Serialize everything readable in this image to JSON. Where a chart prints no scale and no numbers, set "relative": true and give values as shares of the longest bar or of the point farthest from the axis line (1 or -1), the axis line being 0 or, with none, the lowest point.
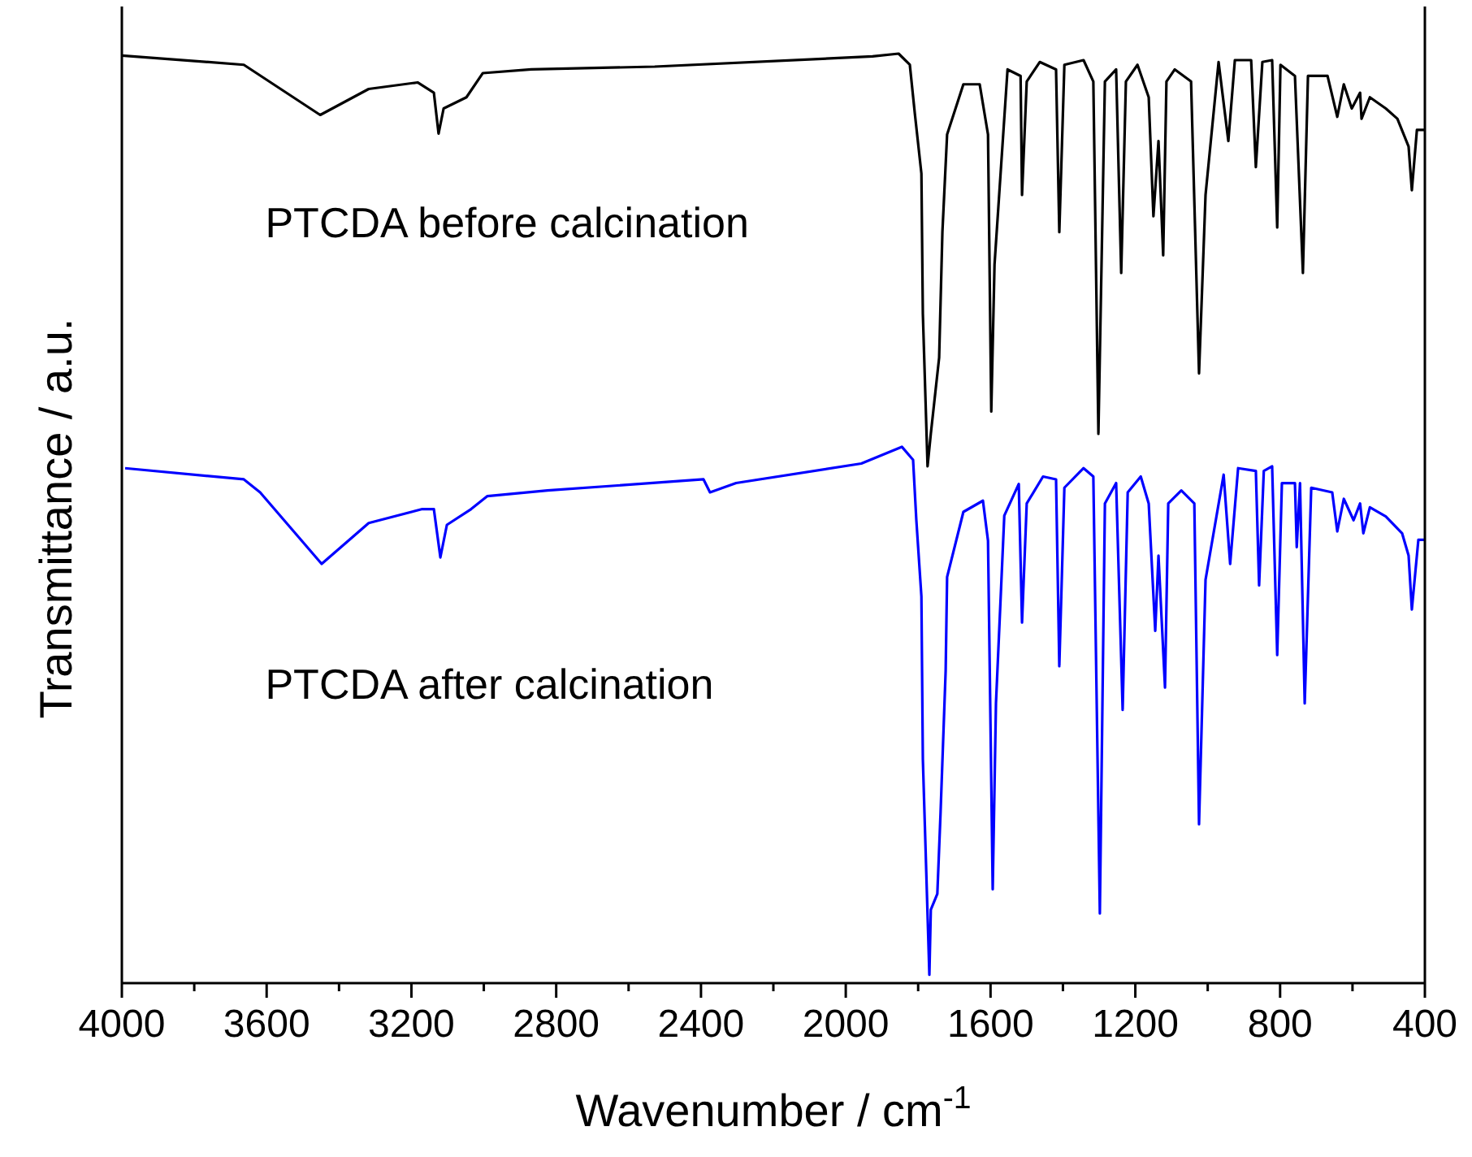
{
  "chart_data": {
    "type": "line",
    "relative": true,
    "xlabel": "Wavenumber / cm$^{-1}$",
    "ylabel": "Transmittance / a.u.",
    "xlim": [
      4000,
      400
    ],
    "xticks": [
      4000,
      {
        "value": 3800,
        "label": null
      },
      3600,
      {
        "value": 3400,
        "label": null
      },
      3200,
      {
        "value": 3000,
        "label": null
      },
      2800,
      {
        "value": 2600,
        "label": null
      },
      2400,
      {
        "value": 2200,
        "label": null
      },
      2000,
      {
        "value": 1800,
        "label": null
      },
      1600,
      {
        "value": 1400,
        "label": null
      },
      1200,
      {
        "value": 1000,
        "label": null
      },
      800,
      {
        "value": 600,
        "label": null
      },
      400
    ],
    "marker": "none",
    "line_style": "solid",
    "legend": false,
    "grid": false,
    "series": [
      {
        "name": "PTCDA before calcination",
        "color": "#000000",
        "x": [
          4000,
          3663,
          3452,
          3318,
          3183,
          3138,
          3125,
          3111,
          3048,
          3003,
          2869,
          2528,
          1926,
          1854,
          1823,
          1809,
          1791,
          1787,
          1774,
          1765,
          1742,
          1733,
          1720,
          1675,
          1630,
          1607,
          1598,
          1589,
          1553,
          1517,
          1513,
          1500,
          1464,
          1419,
          1410,
          1396,
          1343,
          1316,
          1302,
          1284,
          1253,
          1239,
          1226,
          1194,
          1163,
          1150,
          1136,
          1123,
          1114,
          1091,
          1046,
          1024,
          1006,
          970,
          943,
          925,
          880,
          867,
          849,
          822,
          808,
          799,
          759,
          737,
          723,
          669,
          642,
          624,
          602,
          579,
          575,
          552,
          508,
          476,
          445,
          436,
          422,
          400
        ],
        "values": [
          0.998,
          0.988,
          0.934,
          0.962,
          0.969,
          0.958,
          0.914,
          0.941,
          0.953,
          0.979,
          0.983,
          0.986,
          0.997,
          1.0,
          0.988,
          0.935,
          0.871,
          0.72,
          0.556,
          0.591,
          0.673,
          0.808,
          0.913,
          0.967,
          0.967,
          0.913,
          0.615,
          0.773,
          0.983,
          0.976,
          0.848,
          0.97,
          0.991,
          0.983,
          0.808,
          0.988,
          0.993,
          0.97,
          0.591,
          0.97,
          0.983,
          0.764,
          0.97,
          0.988,
          0.953,
          0.825,
          0.906,
          0.783,
          0.97,
          0.983,
          0.97,
          0.656,
          0.848,
          0.991,
          0.906,
          0.993,
          0.993,
          0.878,
          0.991,
          0.993,
          0.813,
          0.988,
          0.976,
          0.764,
          0.976,
          0.976,
          0.932,
          0.967,
          0.941,
          0.958,
          0.93,
          0.953,
          0.941,
          0.93,
          0.9,
          0.853,
          0.918,
          0.918
        ]
      },
      {
        "name": "PTCDA after calcination",
        "color": "#0000ff",
        "x": [
          3991,
          3663,
          3618,
          3448,
          3318,
          3170,
          3138,
          3120,
          3102,
          3035,
          2990,
          2824,
          2393,
          2375,
          2303,
          1957,
          1845,
          1814,
          1805,
          1791,
          1787,
          1769,
          1765,
          1747,
          1738,
          1724,
          1720,
          1675,
          1621,
          1607,
          1594,
          1585,
          1562,
          1522,
          1513,
          1500,
          1455,
          1419,
          1410,
          1396,
          1343,
          1316,
          1298,
          1284,
          1253,
          1235,
          1221,
          1185,
          1163,
          1145,
          1136,
          1118,
          1109,
          1073,
          1037,
          1024,
          1006,
          956,
          938,
          916,
          867,
          858,
          845,
          822,
          808,
          795,
          759,
          754,
          745,
          732,
          714,
          656,
          642,
          624,
          597,
          579,
          570,
          552,
          508,
          463,
          445,
          436,
          418,
          400
        ],
        "values": [
          0.554,
          0.542,
          0.528,
          0.451,
          0.495,
          0.51,
          0.51,
          0.458,
          0.493,
          0.51,
          0.524,
          0.53,
          0.542,
          0.528,
          0.538,
          0.559,
          0.577,
          0.563,
          0.498,
          0.416,
          0.241,
          0.009,
          0.079,
          0.096,
          0.184,
          0.336,
          0.437,
          0.507,
          0.519,
          0.476,
          0.101,
          0.301,
          0.503,
          0.537,
          0.388,
          0.516,
          0.545,
          0.542,
          0.341,
          0.533,
          0.554,
          0.545,
          0.075,
          0.516,
          0.538,
          0.294,
          0.528,
          0.545,
          0.516,
          0.379,
          0.46,
          0.318,
          0.516,
          0.53,
          0.516,
          0.171,
          0.434,
          0.547,
          0.451,
          0.554,
          0.551,
          0.428,
          0.551,
          0.556,
          0.353,
          0.538,
          0.538,
          0.469,
          0.538,
          0.301,
          0.533,
          0.528,
          0.486,
          0.521,
          0.498,
          0.516,
          0.484,
          0.512,
          0.502,
          0.484,
          0.46,
          0.402,
          0.477,
          0.477
        ]
      }
    ]
  }
}
